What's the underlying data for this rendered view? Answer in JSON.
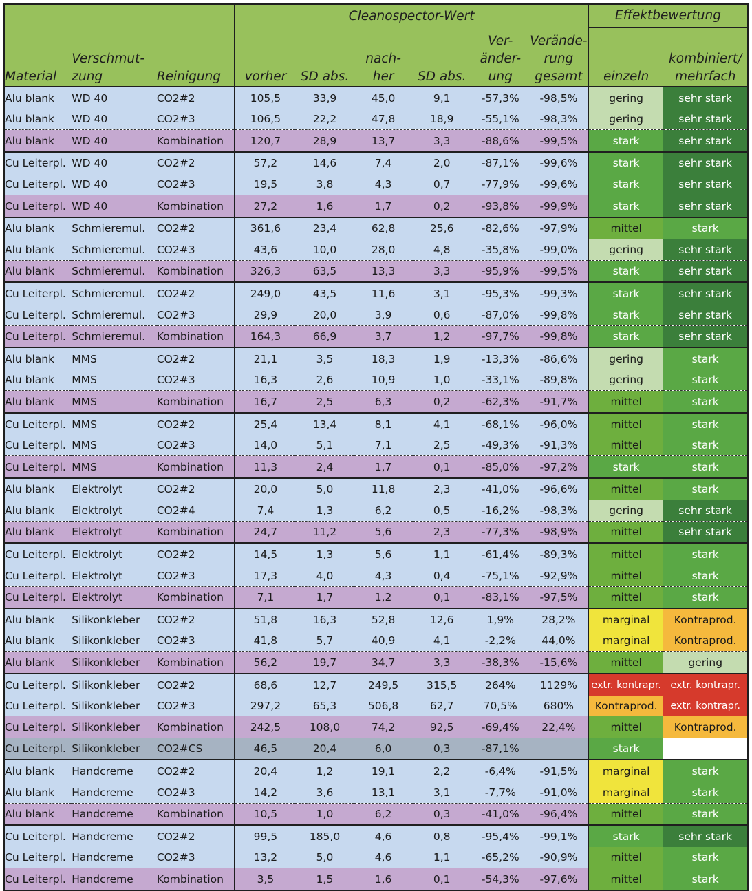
{
  "header": {
    "group_main": "Cleanospector-Wert",
    "group_effect": "Effektbewertung",
    "columns": [
      {
        "lines": [
          "Material"
        ]
      },
      {
        "lines": [
          "Verschmut-",
          "zung"
        ]
      },
      {
        "lines": [
          "Reinigung"
        ]
      },
      {
        "lines": [
          "vorher"
        ]
      },
      {
        "lines": [
          "SD abs."
        ]
      },
      {
        "lines": [
          "nach-",
          "her"
        ]
      },
      {
        "lines": [
          "SD abs."
        ]
      },
      {
        "lines": [
          "Ver-",
          "änder-",
          "ung"
        ]
      },
      {
        "lines": [
          "Verände-",
          "rung",
          "gesamt"
        ]
      },
      {
        "lines": [
          "einzeln"
        ]
      },
      {
        "lines": [
          "kombiniert/",
          "mehrfach"
        ]
      }
    ]
  },
  "colors": {
    "header": "#98c15c",
    "row_blue": "#c7d9ef",
    "row_purple": "#c5a9d0",
    "row_gray": "#a6b3c2",
    "effects": {
      "sehr stark": "#3b7f3b",
      "stark": "#5aa845",
      "mittel": "#6eaf3e",
      "gering": "#c4dcb0",
      "marginal": "#f0e43c",
      "Kontraprod.": "#f5b93d",
      "extr. kontrapr.": "#d63a2c",
      "empty": "#ffffff"
    }
  },
  "blocks": [
    {
      "rows": [
        {
          "style": "blue",
          "c": [
            "Alu blank",
            "WD 40",
            "CO2#2",
            "105,5",
            "33,9",
            "45,0",
            "9,1",
            "-57,3%",
            "-98,5%"
          ],
          "e1": "gering",
          "e2": "sehr stark"
        },
        {
          "style": "blue",
          "c": [
            "Alu blank",
            "WD 40",
            "CO2#3",
            "106,5",
            "22,2",
            "47,8",
            "18,9",
            "-55,1%",
            "-98,3%"
          ],
          "e1": "gering",
          "e2": "sehr stark"
        },
        {
          "style": "purple",
          "c": [
            "Alu blank",
            "WD 40",
            "Kombination",
            "120,7",
            "28,9",
            "13,7",
            "3,3",
            "-88,6%",
            "-99,5%"
          ],
          "e1": "stark",
          "e2": "sehr stark"
        }
      ]
    },
    {
      "rows": [
        {
          "style": "blue",
          "c": [
            "Cu Leiterpl.",
            "WD 40",
            "CO2#2",
            "57,2",
            "14,6",
            "7,4",
            "2,0",
            "-87,1%",
            "-99,6%"
          ],
          "e1": "stark",
          "e2": "sehr stark"
        },
        {
          "style": "blue",
          "c": [
            "Cu Leiterpl.",
            "WD 40",
            "CO2#3",
            "19,5",
            "3,8",
            "4,3",
            "0,7",
            "-77,9%",
            "-99,6%"
          ],
          "e1": "stark",
          "e2": "sehr stark"
        },
        {
          "style": "purple",
          "c": [
            "Cu Leiterpl.",
            "WD 40",
            "Kombination",
            "27,2",
            "1,6",
            "1,7",
            "0,2",
            "-93,8%",
            "-99,9%"
          ],
          "e1": "stark",
          "e2": "sehr stark"
        }
      ]
    },
    {
      "rows": [
        {
          "style": "blue",
          "c": [
            "Alu blank",
            "Schmieremul.",
            "CO2#2",
            "361,6",
            "23,4",
            "62,8",
            "25,6",
            "-82,6%",
            "-97,9%"
          ],
          "e1": "mittel",
          "e2": "stark"
        },
        {
          "style": "blue",
          "c": [
            "Alu blank",
            "Schmieremul.",
            "CO2#3",
            "43,6",
            "10,0",
            "28,0",
            "4,8",
            "-35,8%",
            "-99,0%"
          ],
          "e1": "gering",
          "e2": "sehr stark"
        },
        {
          "style": "purple",
          "c": [
            "Alu blank",
            "Schmieremul.",
            "Kombination",
            "326,3",
            "63,5",
            "13,3",
            "3,3",
            "-95,9%",
            "-99,5%"
          ],
          "e1": "stark",
          "e2": "sehr stark"
        }
      ]
    },
    {
      "rows": [
        {
          "style": "blue",
          "c": [
            "Cu Leiterpl.",
            "Schmieremul.",
            "CO2#2",
            "249,0",
            "43,5",
            "11,6",
            "3,1",
            "-95,3%",
            "-99,3%"
          ],
          "e1": "stark",
          "e2": "sehr stark"
        },
        {
          "style": "blue",
          "c": [
            "Cu Leiterpl.",
            "Schmieremul.",
            "CO2#3",
            "29,9",
            "20,0",
            "3,9",
            "0,6",
            "-87,0%",
            "-99,8%"
          ],
          "e1": "stark",
          "e2": "sehr stark"
        },
        {
          "style": "purple",
          "c": [
            "Cu Leiterpl.",
            "Schmieremul.",
            "Kombination",
            "164,3",
            "66,9",
            "3,7",
            "1,2",
            "-97,7%",
            "-99,8%"
          ],
          "e1": "stark",
          "e2": "sehr stark"
        }
      ]
    },
    {
      "rows": [
        {
          "style": "blue",
          "c": [
            "Alu blank",
            "MMS",
            "CO2#2",
            "21,1",
            "3,5",
            "18,3",
            "1,9",
            "-13,3%",
            "-86,6%"
          ],
          "e1": "gering",
          "e2": "stark"
        },
        {
          "style": "blue",
          "c": [
            "Alu blank",
            "MMS",
            "CO2#3",
            "16,3",
            "2,6",
            "10,9",
            "1,0",
            "-33,1%",
            "-89,8%"
          ],
          "e1": "gering",
          "e2": "stark"
        },
        {
          "style": "purple",
          "c": [
            "Alu blank",
            "MMS",
            "Kombination",
            "16,7",
            "2,5",
            "6,3",
            "0,2",
            "-62,3%",
            "-91,7%"
          ],
          "e1": "mittel",
          "e2": "stark"
        }
      ]
    },
    {
      "rows": [
        {
          "style": "blue",
          "c": [
            "Cu Leiterpl.",
            "MMS",
            "CO2#2",
            "25,4",
            "13,4",
            "8,1",
            "4,1",
            "-68,1%",
            "-96,0%"
          ],
          "e1": "mittel",
          "e2": "stark"
        },
        {
          "style": "blue",
          "c": [
            "Cu Leiterpl.",
            "MMS",
            "CO2#3",
            "14,0",
            "5,1",
            "7,1",
            "2,5",
            "-49,3%",
            "-91,3%"
          ],
          "e1": "mittel",
          "e2": "stark"
        },
        {
          "style": "purple",
          "c": [
            "Cu Leiterpl.",
            "MMS",
            "Kombination",
            "11,3",
            "2,4",
            "1,7",
            "0,1",
            "-85,0%",
            "-97,2%"
          ],
          "e1": "stark",
          "e2": "stark"
        }
      ]
    },
    {
      "rows": [
        {
          "style": "blue",
          "c": [
            "Alu blank",
            "Elektrolyt",
            "CO2#2",
            "20,0",
            "5,0",
            "11,8",
            "2,3",
            "-41,0%",
            "-96,6%"
          ],
          "e1": "mittel",
          "e2": "stark"
        },
        {
          "style": "blue",
          "c": [
            "Alu blank",
            "Elektrolyt",
            "CO2#4",
            "7,4",
            "1,3",
            "6,2",
            "0,5",
            "-16,2%",
            "-98,3%"
          ],
          "e1": "gering",
          "e2": "sehr stark"
        },
        {
          "style": "purple",
          "c": [
            "Alu blank",
            "Elektrolyt",
            "Kombination",
            "24,7",
            "11,2",
            "5,6",
            "2,3",
            "-77,3%",
            "-98,9%"
          ],
          "e1": "mittel",
          "e2": "sehr stark"
        }
      ]
    },
    {
      "rows": [
        {
          "style": "blue",
          "c": [
            "Cu Leiterpl.",
            "Elektrolyt",
            "CO2#2",
            "14,5",
            "1,3",
            "5,6",
            "1,1",
            "-61,4%",
            "-89,3%"
          ],
          "e1": "mittel",
          "e2": "stark"
        },
        {
          "style": "blue",
          "c": [
            "Cu Leiterpl.",
            "Elektrolyt",
            "CO2#3",
            "17,3",
            "4,0",
            "4,3",
            "0,4",
            "-75,1%",
            "-92,9%"
          ],
          "e1": "mittel",
          "e2": "stark"
        },
        {
          "style": "purple",
          "c": [
            "Cu Leiterpl.",
            "Elektrolyt",
            "Kombination",
            "7,1",
            "1,7",
            "1,2",
            "0,1",
            "-83,1%",
            "-97,5%"
          ],
          "e1": "mittel",
          "e2": "stark"
        }
      ]
    },
    {
      "rows": [
        {
          "style": "blue",
          "c": [
            "Alu blank",
            "Silikonkleber",
            "CO2#2",
            "51,8",
            "16,3",
            "52,8",
            "12,6",
            "1,9%",
            "28,2%"
          ],
          "e1": "marginal",
          "e2": "Kontraprod."
        },
        {
          "style": "blue",
          "c": [
            "Alu blank",
            "Silikonkleber",
            "CO2#3",
            "41,8",
            "5,7",
            "40,9",
            "4,1",
            "-2,2%",
            "44,0%"
          ],
          "e1": "marginal",
          "e2": "Kontraprod."
        },
        {
          "style": "purple",
          "c": [
            "Alu blank",
            "Silikonkleber",
            "Kombination",
            "56,2",
            "19,7",
            "34,7",
            "3,3",
            "-38,3%",
            "-15,6%"
          ],
          "e1": "mittel",
          "e2": "gering"
        }
      ]
    },
    {
      "rows": [
        {
          "style": "blue",
          "c": [
            "Cu Leiterpl.",
            "Silikonkleber",
            "CO2#2",
            "68,6",
            "12,7",
            "249,5",
            "315,5",
            "264%",
            "1129%"
          ],
          "e1": "extr. kontrapr.",
          "e2": "extr. kontrapr."
        },
        {
          "style": "blue",
          "c": [
            "Cu Leiterpl.",
            "Silikonkleber",
            "CO2#3",
            "297,2",
            "65,3",
            "506,8",
            "62,7",
            "70,5%",
            "680%"
          ],
          "e1": "Kontraprod.",
          "e2": "extr. kontrapr."
        },
        {
          "style": "purple",
          "c": [
            "Cu Leiterpl.",
            "Silikonkleber",
            "Kombination",
            "242,5",
            "108,0",
            "74,2",
            "92,5",
            "-69,4%",
            "22,4%"
          ],
          "e1": "mittel",
          "e2": "Kontraprod."
        },
        {
          "style": "gray",
          "c": [
            "Cu Leiterpl.",
            "Silikonkleber",
            "CO2#CS",
            "46,5",
            "20,4",
            "6,0",
            "0,3",
            "-87,1%",
            ""
          ],
          "e1": "stark",
          "e2": ""
        }
      ]
    },
    {
      "rows": [
        {
          "style": "blue",
          "c": [
            "Alu blank",
            "Handcreme",
            "CO2#2",
            "20,4",
            "1,2",
            "19,1",
            "2,2",
            "-6,4%",
            "-91,5%"
          ],
          "e1": "marginal",
          "e2": "stark"
        },
        {
          "style": "blue",
          "c": [
            "Alu blank",
            "Handcreme",
            "CO2#3",
            "14,2",
            "3,6",
            "13,1",
            "3,1",
            "-7,7%",
            "-91,0%"
          ],
          "e1": "marginal",
          "e2": "stark"
        },
        {
          "style": "purple",
          "c": [
            "Alu blank",
            "Handcreme",
            "Kombination",
            "10,5",
            "1,0",
            "6,2",
            "0,3",
            "-41,0%",
            "-96,4%"
          ],
          "e1": "mittel",
          "e2": "stark"
        }
      ]
    },
    {
      "rows": [
        {
          "style": "blue",
          "c": [
            "Cu Leiterpl.",
            "Handcreme",
            "CO2#2",
            "99,5",
            "185,0",
            "4,6",
            "0,8",
            "-95,4%",
            "-99,1%"
          ],
          "e1": "stark",
          "e2": "sehr stark"
        },
        {
          "style": "blue",
          "c": [
            "Cu Leiterpl.",
            "Handcreme",
            "CO2#3",
            "13,2",
            "5,0",
            "4,6",
            "1,1",
            "-65,2%",
            "-90,9%"
          ],
          "e1": "mittel",
          "e2": "stark"
        },
        {
          "style": "purple",
          "c": [
            "Cu Leiterpl.",
            "Handcreme",
            "Kombination",
            "3,5",
            "1,5",
            "1,6",
            "0,1",
            "-54,3%",
            "-97,6%"
          ],
          "e1": "mittel",
          "e2": "stark"
        }
      ]
    }
  ]
}
